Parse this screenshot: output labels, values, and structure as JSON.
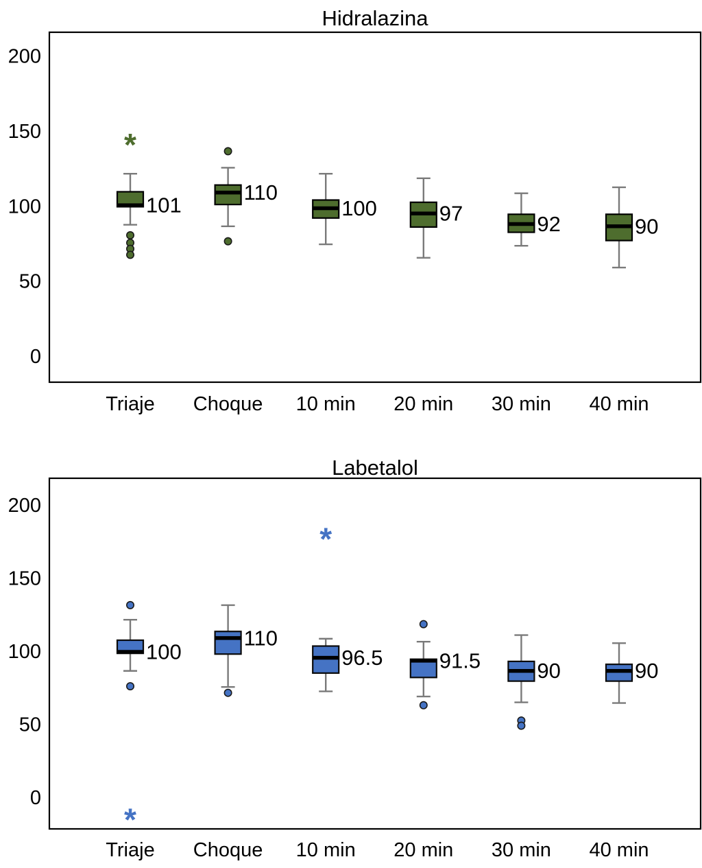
{
  "figure": {
    "background": "#ffffff",
    "text_color": "#000000"
  },
  "chart_data": [
    {
      "type": "boxplot",
      "title": "Hidralazina",
      "box_fill": "#4e6d2e",
      "box_border": "#000000",
      "median_color": "#000000",
      "whisker_color": "#7a7a7a",
      "outlier_color": "#4e6d2e",
      "grid": false,
      "legend": "none",
      "categories": [
        "Triaje",
        "Choque",
        "10 min",
        "20 min",
        "30 min",
        "40 min"
      ],
      "yticks": [
        0,
        50,
        100,
        150,
        200
      ],
      "ylim": [
        -16.9,
        216.3
      ],
      "boxes": [
        {
          "category": "Triaje",
          "label": "101",
          "whisker_high": 122,
          "q3": 110,
          "median": 101,
          "q1": 100,
          "whisker_low": 88,
          "dot_outliers": [
            81,
            76,
            72,
            68
          ],
          "star_outliers": [
            144
          ]
        },
        {
          "category": "Choque",
          "label": "110",
          "whisker_high": 126,
          "q3": 114.5,
          "median": 109.5,
          "q1": 101.5,
          "whisker_low": 87,
          "dot_outliers": [
            137,
            77
          ],
          "star_outliers": []
        },
        {
          "category": "10 min",
          "label": "100",
          "whisker_high": 122,
          "q3": 104.5,
          "median": 99,
          "q1": 92.5,
          "whisker_low": 75,
          "dot_outliers": [],
          "star_outliers": []
        },
        {
          "category": "20 min",
          "label": "97",
          "whisker_high": 119,
          "q3": 103,
          "median": 95.5,
          "q1": 86.5,
          "whisker_low": 66,
          "dot_outliers": [],
          "star_outliers": []
        },
        {
          "category": "30 min",
          "label": "92",
          "whisker_high": 109,
          "q3": 95,
          "median": 88.5,
          "q1": 83,
          "whisker_low": 74,
          "dot_outliers": [],
          "star_outliers": []
        },
        {
          "category": "40 min",
          "label": "90",
          "whisker_high": 113,
          "q3": 95,
          "median": 87,
          "q1": 77.5,
          "whisker_low": 59.5,
          "dot_outliers": [],
          "star_outliers": []
        }
      ]
    },
    {
      "type": "boxplot",
      "title": "Labetalol",
      "box_fill": "#4573c4",
      "box_border": "#0a0a0a",
      "median_color": "#000000",
      "whisker_color": "#7a7a7a",
      "outlier_color": "#4573c4",
      "grid": false,
      "legend": "none",
      "categories": [
        "Triaje",
        "Choque",
        "10 min",
        "20 min",
        "30 min",
        "40 min"
      ],
      "yticks": [
        0,
        50,
        100,
        150,
        200
      ],
      "ylim": [
        -21.1,
        218.8
      ],
      "boxes": [
        {
          "category": "Triaje",
          "label": "100",
          "whisker_high": 122,
          "q3": 108,
          "median": 100,
          "q1": 99,
          "whisker_low": 87,
          "dot_outliers": [
            132,
            76.5
          ],
          "star_outliers": [
            -12
          ]
        },
        {
          "category": "Choque",
          "label": "110",
          "whisker_high": 132,
          "q3": 114,
          "median": 109.5,
          "q1": 98.5,
          "whisker_low": 76,
          "dot_outliers": [
            72
          ],
          "star_outliers": []
        },
        {
          "category": "10 min",
          "label": "96.5",
          "whisker_high": 109,
          "q3": 104,
          "median": 96,
          "q1": 85.5,
          "whisker_low": 73,
          "dot_outliers": [],
          "star_outliers": [
            180
          ]
        },
        {
          "category": "20 min",
          "label": "91.5",
          "whisker_high": 107,
          "q3": 95,
          "median": 94,
          "q1": 82.5,
          "whisker_low": 69.5,
          "dot_outliers": [
            119,
            63.5
          ],
          "star_outliers": []
        },
        {
          "category": "30 min",
          "label": "90",
          "whisker_high": 111.5,
          "q3": 93.5,
          "median": 87,
          "q1": 80,
          "whisker_low": 65.5,
          "dot_outliers": [
            53,
            49.5
          ],
          "star_outliers": []
        },
        {
          "category": "40 min",
          "label": "90",
          "whisker_high": 106,
          "q3": 91.5,
          "median": 87,
          "q1": 80,
          "whisker_low": 65,
          "dot_outliers": [],
          "star_outliers": []
        }
      ]
    }
  ]
}
